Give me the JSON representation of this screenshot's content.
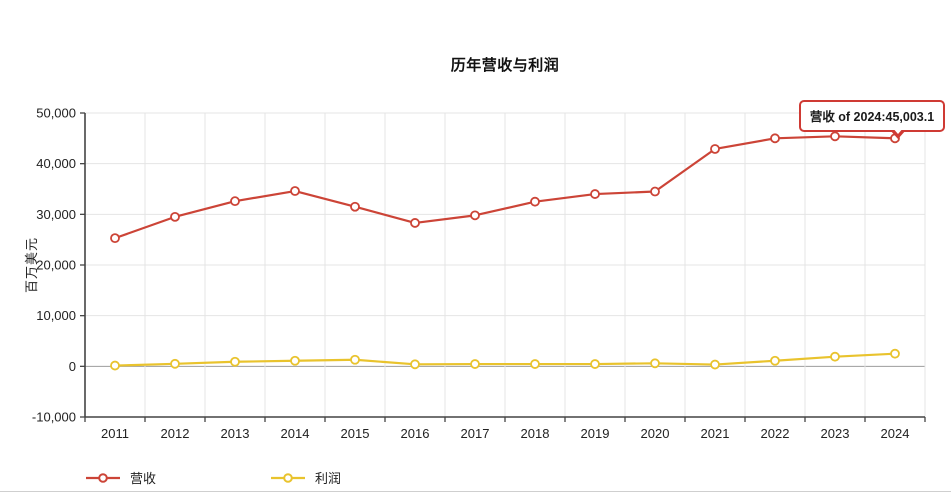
{
  "title": "历年营收与利润",
  "y_axis_title": "百万美元",
  "tooltip": {
    "text": "营收 of 2024:45,003.1"
  },
  "legend": [
    {
      "label": "营收",
      "color": "#cc4437"
    },
    {
      "label": "利润",
      "color": "#e9c32d"
    }
  ],
  "colors": {
    "revenue": "#cc4437",
    "profit": "#e9c32d",
    "gridline": "#e4e4e4",
    "zero_line": "#9d9d9d",
    "axis": "#444444",
    "label": "#222222",
    "tooltip_border": "#cf3a34"
  },
  "chart_data": {
    "type": "line",
    "title": "历年营收与利润",
    "xlabel": "",
    "ylabel": "百万美元",
    "categories": [
      "2011",
      "2012",
      "2013",
      "2014",
      "2015",
      "2016",
      "2017",
      "2018",
      "2019",
      "2020",
      "2021",
      "2022",
      "2023",
      "2024"
    ],
    "series": [
      {
        "name": "营收",
        "color": "#cc4437",
        "values": [
          25300,
          29500,
          32600,
          34600,
          31500,
          28300,
          29800,
          32500,
          34000,
          34500,
          42900,
          45000,
          45400,
          45003.1
        ]
      },
      {
        "name": "利润",
        "color": "#e9c32d",
        "values": [
          150,
          500,
          900,
          1100,
          1300,
          400,
          450,
          450,
          450,
          600,
          350,
          1100,
          1900,
          2500
        ]
      }
    ],
    "ylim": [
      -10000,
      50000
    ],
    "y_ticks": [
      -10000,
      0,
      10000,
      20000,
      30000,
      40000,
      50000
    ],
    "grid": true,
    "legend_position": "bottom-left",
    "annotation": {
      "series": "营收",
      "x": "2024",
      "value": 45003.1,
      "label": "营收 of 2024:45,003.1"
    }
  }
}
